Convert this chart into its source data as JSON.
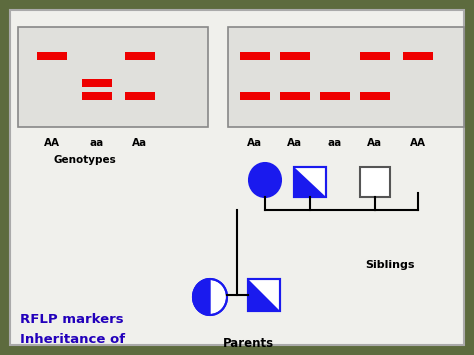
{
  "bg_color": "#5d6b3e",
  "panel_color": "#f0f0ec",
  "title_text_line1": "Inheritance of",
  "title_text_line2": "RFLP markers",
  "title_color": "#2200bb",
  "parents_label": "Parents",
  "siblings_label": "Siblings",
  "genotypes_label": "Genotypes",
  "left_genotypes": [
    "AA",
    "aa",
    "Aa"
  ],
  "right_genotypes": [
    "Aa",
    "Aa",
    "aa",
    "Aa",
    "AA"
  ],
  "blue_fill": "#1a1aee",
  "band_color": "#ee0000",
  "line_color": "#000000",
  "figw": 4.74,
  "figh": 3.55,
  "dpi": 100
}
